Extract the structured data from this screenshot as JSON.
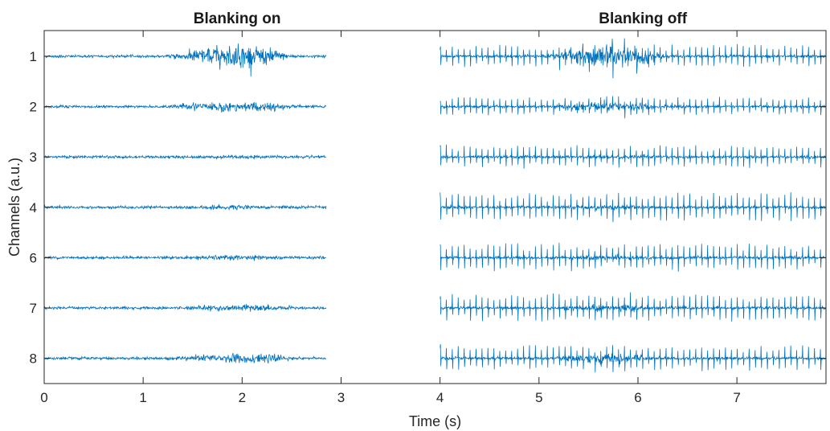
{
  "chart_data": {
    "type": "line",
    "titles": [
      {
        "text": "Blanking on",
        "x_center": 1.95
      },
      {
        "text": "Blanking off",
        "x_center": 6.05
      }
    ],
    "xlabel": "Time (s)",
    "ylabel": "Channels (a.u.)",
    "xlim": [
      0,
      7.9
    ],
    "xticks": [
      0,
      1,
      2,
      3,
      4,
      5,
      6,
      7,
      8
    ],
    "xtick_labels": [
      "0",
      "1",
      "2",
      "3",
      "4",
      "5",
      "6",
      "7",
      "8"
    ],
    "line_color": "#0072BD",
    "grid": false,
    "baseline_note": null,
    "segments": [
      {
        "name": "Blanking on",
        "x_range": [
          0,
          2.85
        ],
        "burst_range": [
          1.2,
          2.8
        ],
        "spikes": false
      },
      {
        "name": "Blanking off",
        "x_range": [
          4.0,
          7.9
        ],
        "burst_range": [
          5.0,
          6.5
        ],
        "spikes": true,
        "spike_period": 0.06
      }
    ],
    "channels": [
      {
        "label": "1",
        "burst_amplitude": 0.9,
        "spike_amplitude": 0.45
      },
      {
        "label": "2",
        "burst_amplitude": 0.4,
        "spike_amplitude": 0.35
      },
      {
        "label": "3",
        "burst_amplitude": 0.1,
        "spike_amplitude": 0.45
      },
      {
        "label": "4",
        "burst_amplitude": 0.15,
        "spike_amplitude": 0.55
      },
      {
        "label": "6",
        "burst_amplitude": 0.2,
        "spike_amplitude": 0.55
      },
      {
        "label": "7",
        "burst_amplitude": 0.25,
        "spike_amplitude": 0.55
      },
      {
        "label": "8",
        "burst_amplitude": 0.4,
        "spike_amplitude": 0.5
      }
    ]
  }
}
